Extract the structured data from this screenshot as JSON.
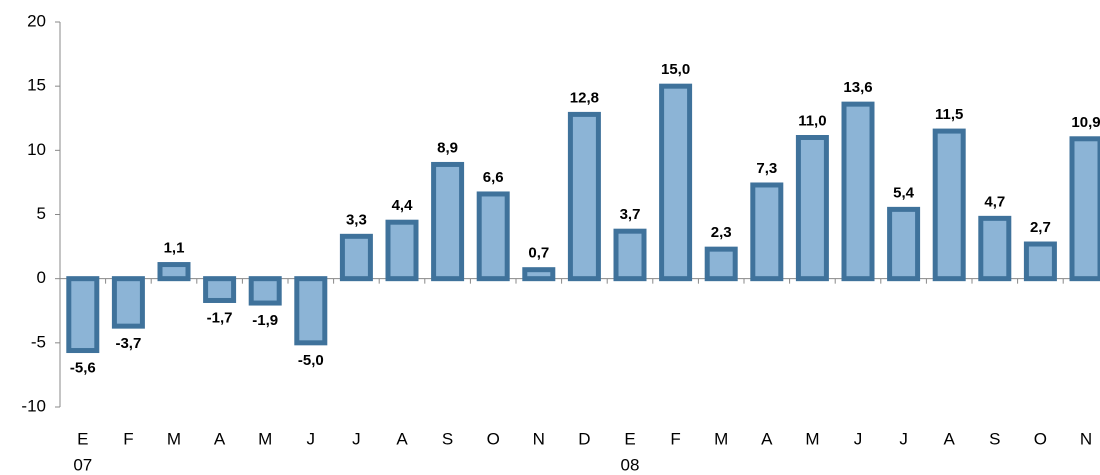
{
  "chart_data": {
    "type": "bar",
    "categories": [
      "E",
      "F",
      "M",
      "A",
      "M",
      "J",
      "J",
      "A",
      "S",
      "O",
      "N",
      "D",
      "E",
      "F",
      "M",
      "A",
      "M",
      "J",
      "J",
      "A",
      "S",
      "O",
      "N"
    ],
    "year_labels": [
      "07",
      null,
      null,
      null,
      null,
      null,
      null,
      null,
      null,
      null,
      null,
      null,
      "08",
      null,
      null,
      null,
      null,
      null,
      null,
      null,
      null,
      null,
      null
    ],
    "values": [
      -5.6,
      -3.7,
      1.1,
      -1.7,
      -1.9,
      -5.0,
      3.3,
      4.4,
      8.9,
      6.6,
      0.7,
      12.8,
      3.7,
      15.0,
      2.3,
      7.3,
      11.0,
      13.6,
      5.4,
      11.5,
      4.7,
      2.7,
      10.9
    ],
    "value_labels": [
      "-5,6",
      "-3,7",
      "1,1",
      "-1,7",
      "-1,9",
      "-5,0",
      "3,3",
      "4,4",
      "8,9",
      "6,6",
      "0,7",
      "12,8",
      "3,7",
      "15,0",
      "2,3",
      "7,3",
      "11,0",
      "13,6",
      "5,4",
      "11,5",
      "4,7",
      "2,7",
      "10,9"
    ],
    "color": "#8cb4d6",
    "edge_color": "#3f729b",
    "ylim": [
      -10,
      20
    ],
    "yticks": [
      -10,
      -5,
      0,
      5,
      10,
      15,
      20
    ]
  }
}
